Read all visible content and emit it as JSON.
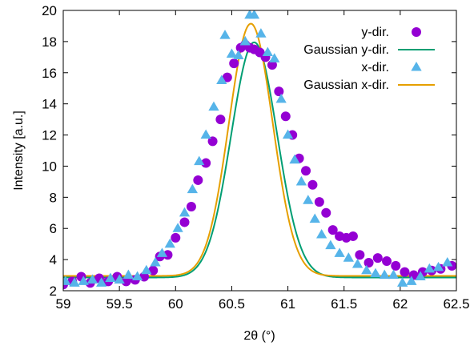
{
  "chart_data": {
    "type": "scatter",
    "xlabel": "2θ (°)",
    "ylabel": "Intensity [a.u.]",
    "xlim": [
      59,
      62.5
    ],
    "ylim": [
      2,
      20
    ],
    "xticks": [
      59,
      59.5,
      60,
      60.5,
      61,
      61.5,
      62,
      62.5
    ],
    "xtick_labels": [
      "59",
      "59.5",
      "60",
      "60.5",
      "61",
      "61.5",
      "62",
      "62.5"
    ],
    "yticks": [
      2,
      4,
      6,
      8,
      10,
      12,
      14,
      16,
      18,
      20
    ],
    "ytick_labels": [
      "2",
      "4",
      "6",
      "8",
      "10",
      "12",
      "14",
      "16",
      "18",
      "20"
    ],
    "legend_position": "top-right",
    "series": [
      {
        "name": "y-dir.",
        "kind": "scatter",
        "marker": "circle",
        "color": "#9400d3",
        "x": [
          59.0,
          59.08,
          59.16,
          59.24,
          59.32,
          59.4,
          59.48,
          59.56,
          59.64,
          59.72,
          59.8,
          59.86,
          59.93,
          60.0,
          60.08,
          60.14,
          60.2,
          60.27,
          60.33,
          60.4,
          60.46,
          60.52,
          60.58,
          60.62,
          60.66,
          60.7,
          60.75,
          60.8,
          60.86,
          60.92,
          60.98,
          61.04,
          61.1,
          61.16,
          61.22,
          61.28,
          61.34,
          61.4,
          61.46,
          61.52,
          61.58,
          61.64,
          61.72,
          61.8,
          61.88,
          61.96,
          62.04,
          62.12,
          62.2,
          62.28,
          62.36,
          62.46
        ],
        "y": [
          2.4,
          2.6,
          2.9,
          2.5,
          2.8,
          2.6,
          2.9,
          2.6,
          2.7,
          2.9,
          3.3,
          4.2,
          4.3,
          5.4,
          6.4,
          7.4,
          9.1,
          10.2,
          11.6,
          13.0,
          15.7,
          16.6,
          17.6,
          17.8,
          17.6,
          17.5,
          17.3,
          17.0,
          16.5,
          14.8,
          13.2,
          12.0,
          10.5,
          9.7,
          8.8,
          7.7,
          7.0,
          5.9,
          5.5,
          5.4,
          5.5,
          4.3,
          3.8,
          4.1,
          3.9,
          3.6,
          3.2,
          3.0,
          3.2,
          3.3,
          3.4,
          3.6
        ]
      },
      {
        "name": "Gaussian y-dir.",
        "kind": "line",
        "color": "#009e73",
        "model": {
          "baseline": 2.85,
          "amplitude": 15.1,
          "center": 60.7,
          "sigma": 0.205
        }
      },
      {
        "name": "x-dir.",
        "kind": "scatter",
        "marker": "triangle",
        "color": "#56b4e9",
        "x": [
          59.02,
          59.1,
          59.18,
          59.26,
          59.34,
          59.42,
          59.5,
          59.58,
          59.66,
          59.74,
          59.82,
          59.88,
          59.95,
          60.02,
          60.08,
          60.15,
          60.21,
          60.27,
          60.34,
          60.41,
          60.44,
          60.5,
          60.56,
          60.62,
          60.66,
          60.7,
          60.76,
          60.82,
          60.88,
          60.94,
          61.0,
          61.06,
          61.12,
          61.18,
          61.24,
          61.3,
          61.38,
          61.46,
          61.54,
          61.62,
          61.7,
          61.78,
          61.86,
          61.94,
          62.02,
          62.1,
          62.18,
          62.26,
          62.34,
          62.42
        ],
        "y": [
          2.6,
          2.5,
          2.6,
          2.7,
          2.5,
          2.8,
          2.7,
          3.0,
          2.9,
          3.3,
          3.8,
          4.4,
          5.0,
          6.0,
          7.0,
          8.5,
          10.3,
          12.0,
          13.8,
          15.5,
          18.4,
          17.2,
          17.1,
          18.0,
          19.7,
          19.7,
          18.5,
          17.3,
          16.9,
          14.3,
          12.0,
          10.4,
          9.0,
          7.8,
          6.6,
          5.6,
          4.9,
          4.4,
          4.1,
          3.7,
          3.3,
          3.1,
          3.0,
          3.0,
          2.5,
          2.6,
          2.9,
          3.4,
          3.5,
          3.8
        ]
      },
      {
        "name": "Gaussian x-dir.",
        "kind": "line",
        "color": "#e69f00",
        "model": {
          "baseline": 2.95,
          "amplitude": 16.2,
          "center": 60.67,
          "sigma": 0.195
        }
      }
    ]
  }
}
